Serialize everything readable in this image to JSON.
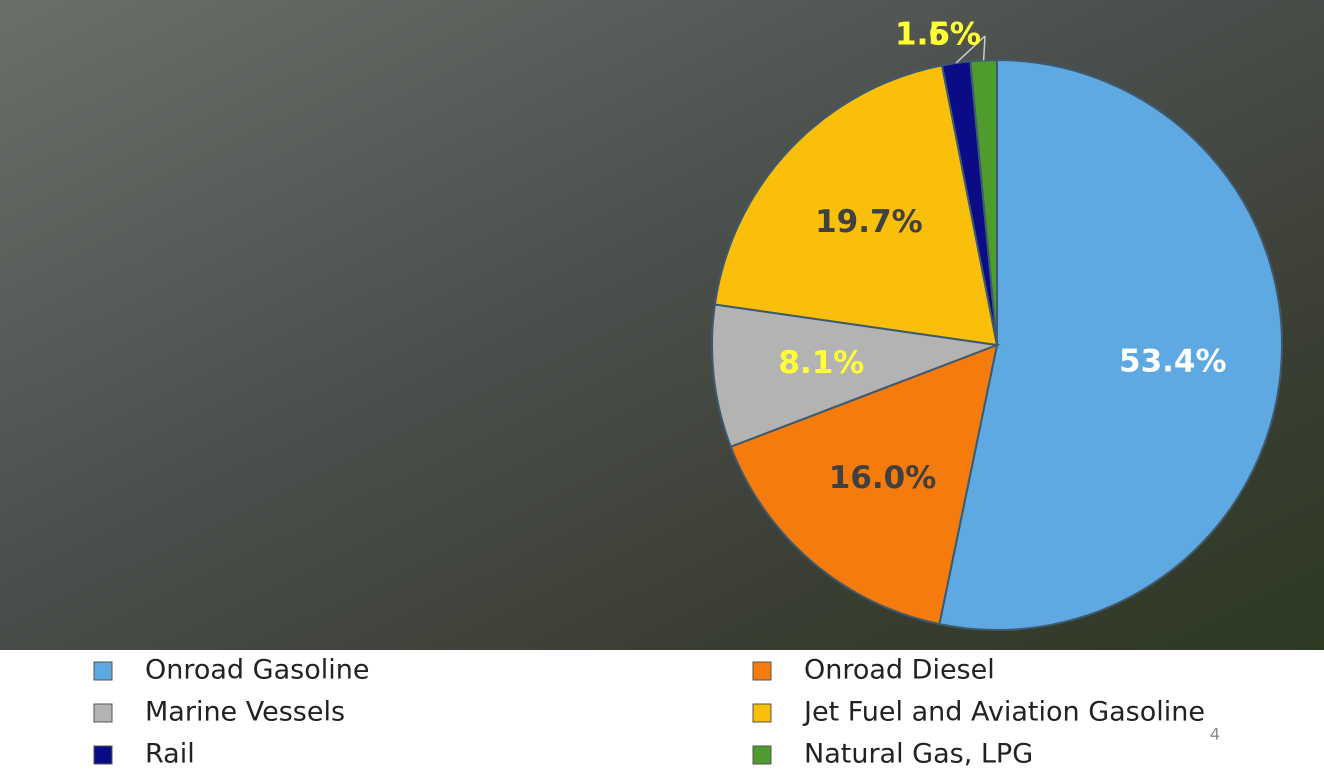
{
  "chart_data": {
    "type": "pie",
    "categories": [
      "Onroad Gasoline",
      "Onroad Diesel",
      "Marine Vessels",
      "Jet Fuel and Aviation Gasoline",
      "Rail",
      "Natural Gas, LPG"
    ],
    "values": [
      53.4,
      16.0,
      8.1,
      19.7,
      1.6,
      1.5
    ],
    "value_labels": [
      "53.4%",
      "16.0%",
      "8.1%",
      "19.7%",
      "1.6%",
      "1.5%"
    ],
    "colors": [
      "#5ea9e2",
      "#f47b0c",
      "#b3b3b3",
      "#f9bf0b",
      "#0b0b86",
      "#4f9b2e"
    ],
    "value_label_colors": [
      "#ffffff",
      "#404040",
      "#ffff33",
      "#404040",
      "#ffff33",
      "#ffff33"
    ],
    "legend": "bottom"
  },
  "page_number": "4"
}
